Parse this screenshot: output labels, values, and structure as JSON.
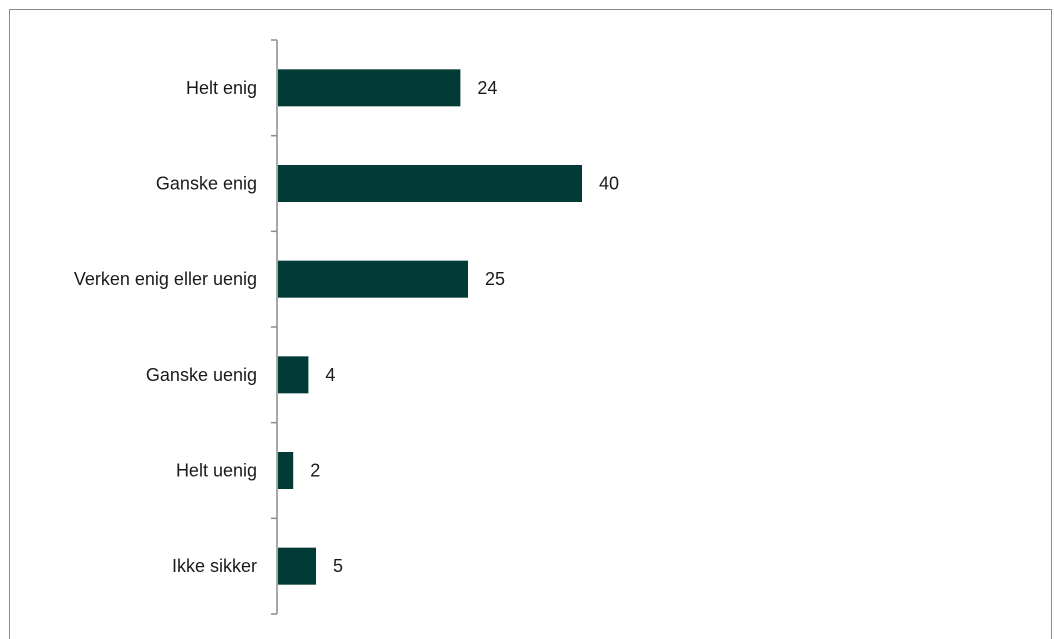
{
  "chart_data": {
    "type": "bar",
    "orientation": "horizontal",
    "categories": [
      "Helt enig",
      "Ganske enig",
      "Verken enig eller uenig",
      "Ganske uenig",
      "Helt uenig",
      "Ikke sikker"
    ],
    "values": [
      24,
      40,
      25,
      4,
      2,
      5
    ],
    "data_labels": [
      "24",
      "40",
      "25",
      "4",
      "2",
      "5"
    ],
    "xlim": [
      0,
      100
    ],
    "grid": false,
    "legend": "none",
    "bar_color": "#003b36",
    "axis_color": "#8c8c8c"
  }
}
